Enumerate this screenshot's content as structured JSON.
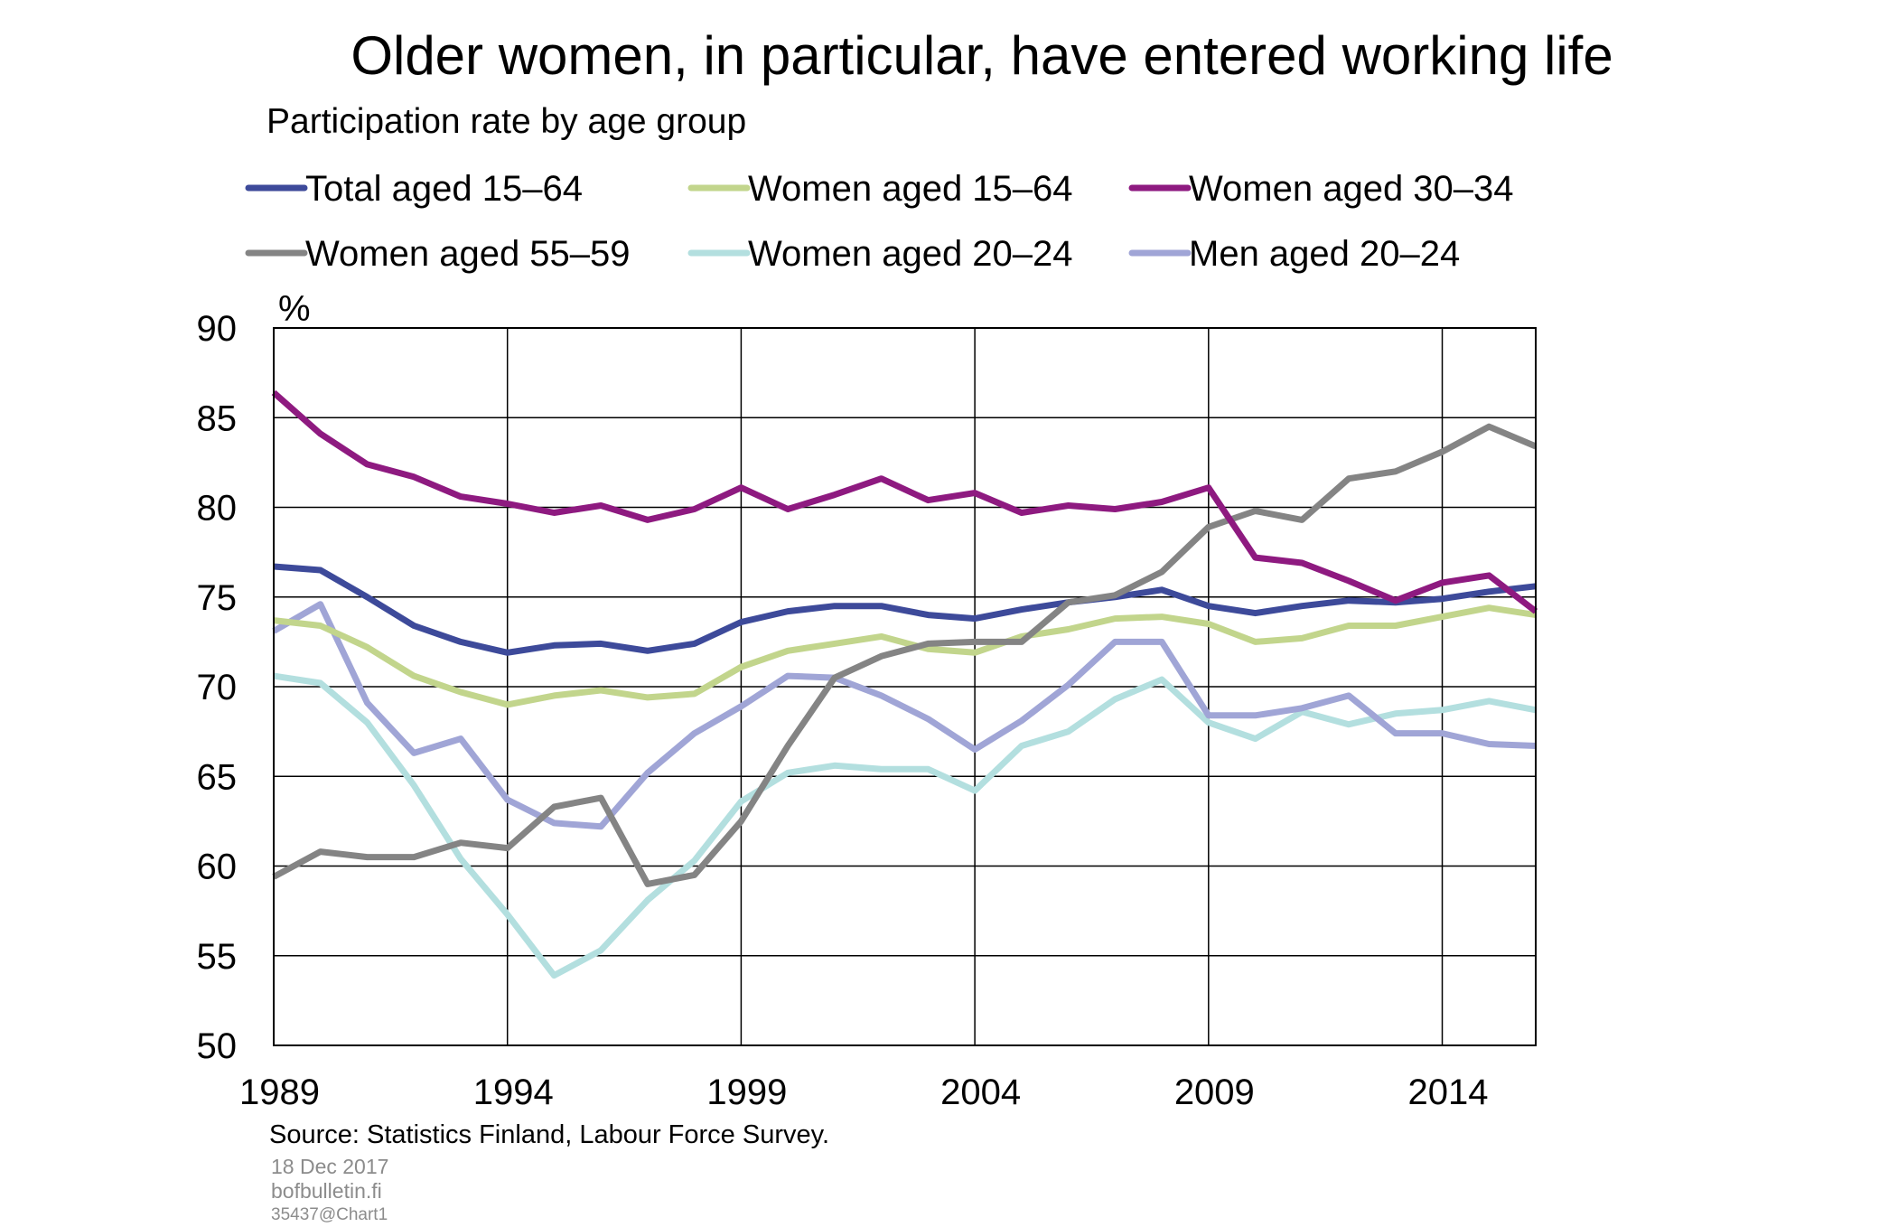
{
  "title": "Older women, in particular, have entered working life",
  "subtitle": "Participation rate by age group",
  "source": "Source: Statistics Finland, Labour Force Survey.",
  "footer": {
    "date": "18 Dec 2017",
    "site": "bofbulletin.fi",
    "code": "35437@Chart1"
  },
  "chart_data": {
    "type": "line",
    "ylabel": "%",
    "xlabel": "",
    "ylim": [
      50,
      90
    ],
    "xlim": [
      1989,
      2016
    ],
    "y_ticks": [
      50,
      55,
      60,
      65,
      70,
      75,
      80,
      85,
      90
    ],
    "x_ticks": [
      1989,
      1994,
      1999,
      2004,
      2009,
      2014
    ],
    "grid": true,
    "legend_position": "top",
    "x": [
      1989,
      1990,
      1991,
      1992,
      1993,
      1994,
      1995,
      1996,
      1997,
      1998,
      1999,
      2000,
      2001,
      2002,
      2003,
      2004,
      2005,
      2006,
      2007,
      2008,
      2009,
      2010,
      2011,
      2012,
      2013,
      2014,
      2015,
      2016
    ],
    "series": [
      {
        "name": "Total aged 15–64",
        "color": "#3d4a9a",
        "values": [
          76.7,
          76.5,
          75.0,
          73.4,
          72.5,
          71.9,
          72.3,
          72.4,
          72.0,
          72.4,
          73.6,
          74.2,
          74.5,
          74.5,
          74.0,
          73.8,
          74.3,
          74.7,
          75.0,
          75.4,
          74.5,
          74.1,
          74.5,
          74.8,
          74.7,
          74.9,
          75.3,
          75.6
        ]
      },
      {
        "name": "Women aged 15–64",
        "color": "#c2d58c",
        "values": [
          73.7,
          73.4,
          72.2,
          70.6,
          69.7,
          69.0,
          69.5,
          69.8,
          69.4,
          69.6,
          71.1,
          72.0,
          72.4,
          72.8,
          72.1,
          71.9,
          72.8,
          73.2,
          73.8,
          73.9,
          73.5,
          72.5,
          72.7,
          73.4,
          73.4,
          73.9,
          74.4,
          74.0
        ]
      },
      {
        "name": "Women aged 30–34",
        "color": "#8e1a80",
        "values": [
          86.4,
          84.1,
          82.4,
          81.7,
          80.6,
          80.2,
          79.7,
          80.1,
          79.3,
          79.9,
          81.1,
          79.9,
          80.7,
          81.6,
          80.4,
          80.8,
          79.7,
          80.1,
          79.9,
          80.3,
          81.1,
          77.2,
          76.9,
          75.9,
          74.8,
          75.8,
          76.2,
          74.2
        ]
      },
      {
        "name": "Women aged 55–59",
        "color": "#848484",
        "values": [
          59.4,
          60.8,
          60.5,
          60.5,
          61.3,
          61.0,
          63.3,
          63.8,
          59.0,
          59.5,
          62.5,
          66.7,
          70.5,
          71.7,
          72.4,
          72.5,
          72.5,
          74.7,
          75.1,
          76.4,
          78.9,
          79.8,
          79.3,
          81.6,
          82.0,
          83.1,
          84.5,
          83.4
        ]
      },
      {
        "name": "Women aged 20–24",
        "color": "#b3dfdf",
        "values": [
          70.6,
          70.2,
          68.0,
          64.5,
          60.4,
          57.3,
          53.9,
          55.3,
          58.1,
          60.3,
          63.6,
          65.2,
          65.6,
          65.4,
          65.4,
          64.2,
          66.7,
          67.5,
          69.3,
          70.4,
          68.0,
          67.1,
          68.6,
          67.9,
          68.5,
          68.7,
          69.2,
          68.7
        ]
      },
      {
        "name": "Men aged 20–24",
        "color": "#a0a5d6",
        "values": [
          73.1,
          74.6,
          69.1,
          66.3,
          67.1,
          63.7,
          62.4,
          62.2,
          65.2,
          67.4,
          68.9,
          70.6,
          70.5,
          69.5,
          68.2,
          66.5,
          68.1,
          70.1,
          72.5,
          72.5,
          68.4,
          68.4,
          68.8,
          69.5,
          67.4,
          67.4,
          66.8,
          66.7
        ]
      }
    ]
  }
}
